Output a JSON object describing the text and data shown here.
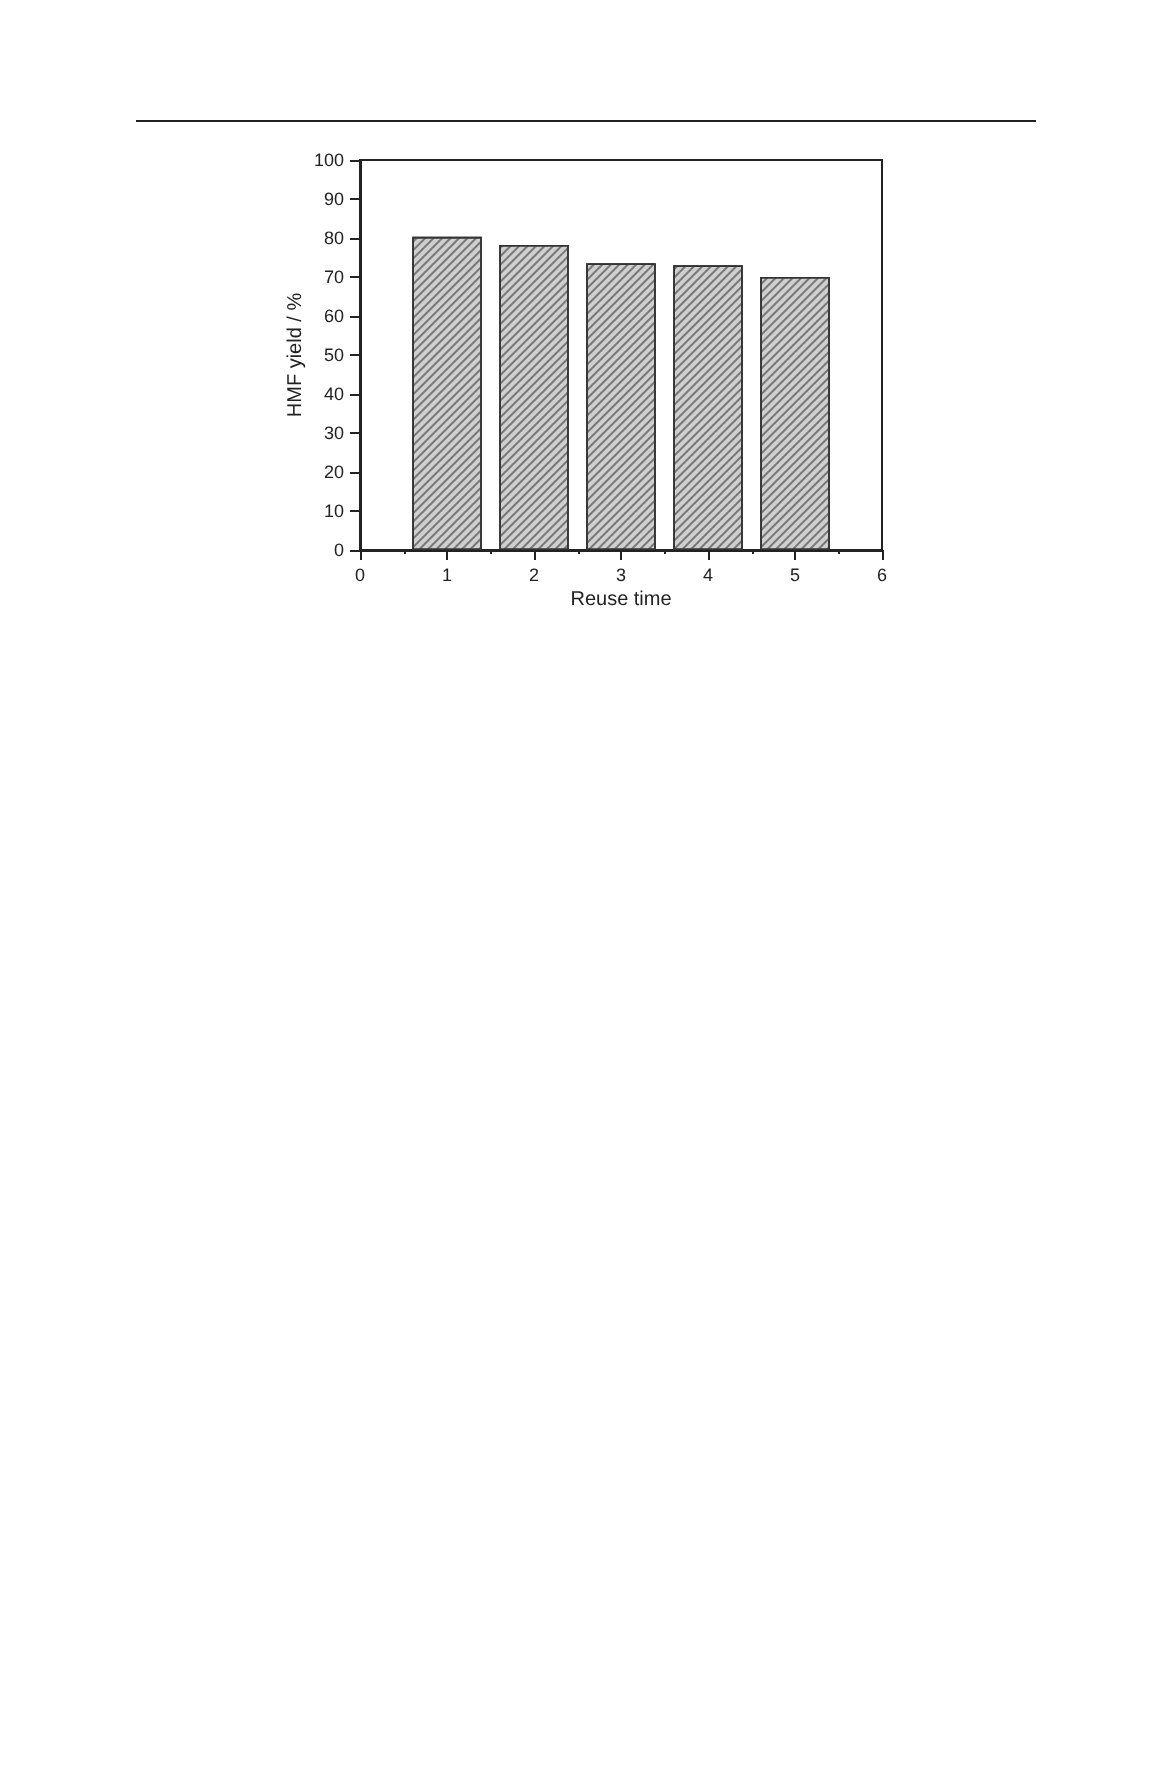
{
  "chart_data": {
    "type": "bar",
    "xlabel": "Reuse time",
    "ylabel": "HMF yield / %",
    "x": [
      1,
      2,
      3,
      4,
      5
    ],
    "values": [
      80.3,
      78.2,
      73.5,
      73,
      70
    ],
    "color": "#cfcfcf",
    "xlim": [
      0,
      6
    ],
    "xticks": [
      0,
      1,
      2,
      3,
      4,
      5,
      6
    ],
    "ylim": [
      0,
      100
    ],
    "yticks": [
      0,
      10,
      20,
      30,
      40,
      50,
      60,
      70,
      80,
      90,
      100
    ],
    "grid": false
  }
}
